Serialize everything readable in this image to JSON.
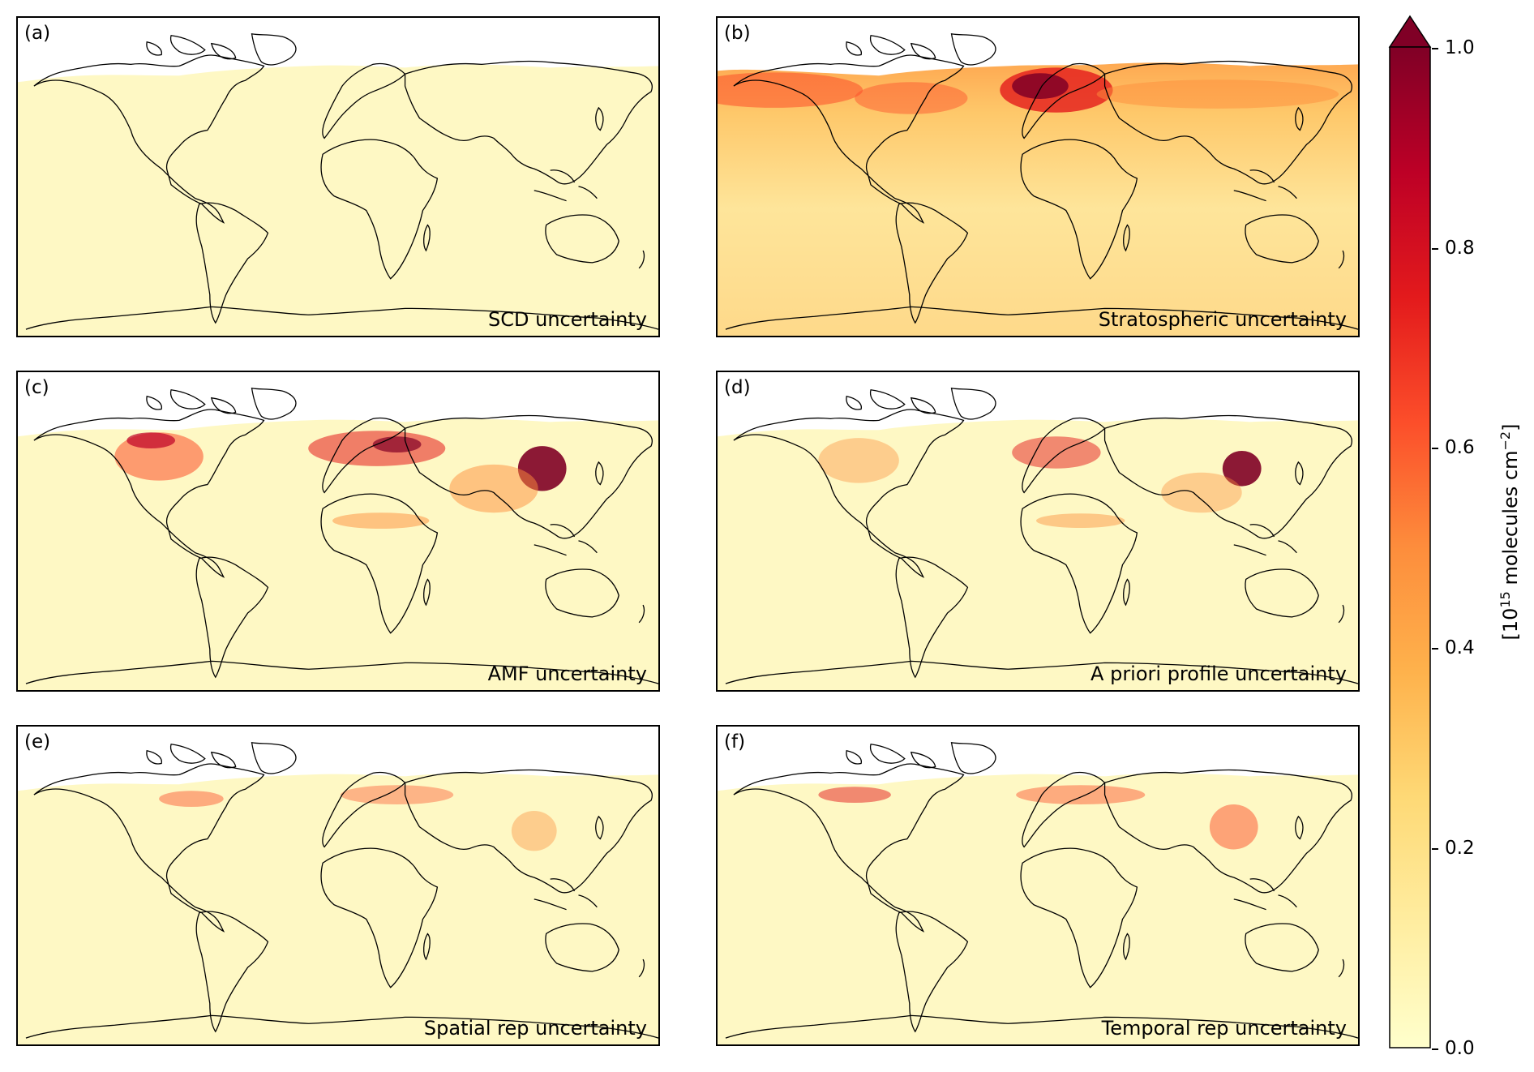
{
  "panels": [
    {
      "letter": "(a)",
      "title": "SCD uncertainty"
    },
    {
      "letter": "(b)",
      "title": "Stratospheric uncertainty"
    },
    {
      "letter": "(c)",
      "title": "AMF uncertainty"
    },
    {
      "letter": "(d)",
      "title": "A priori profile uncertainty"
    },
    {
      "letter": "(e)",
      "title": "Spatial rep uncertainty"
    },
    {
      "letter": "(f)",
      "title": "Temporal rep uncertainty"
    }
  ],
  "colorbar": {
    "label_prefix": "[10",
    "label_exp": "15",
    "label_mid": " molecules cm",
    "label_exp2": "−2",
    "label_suffix": "]",
    "ticks": [
      "0.0",
      "0.2",
      "0.4",
      "0.6",
      "0.8",
      "1.0"
    ],
    "range": [
      0.0,
      1.0
    ],
    "extend": "max",
    "colors": [
      "#ffffcc",
      "#ffeda0",
      "#fed976",
      "#feb24c",
      "#fd8d3c",
      "#fc4e2a",
      "#e31a1c",
      "#bd0026",
      "#800026"
    ]
  }
}
